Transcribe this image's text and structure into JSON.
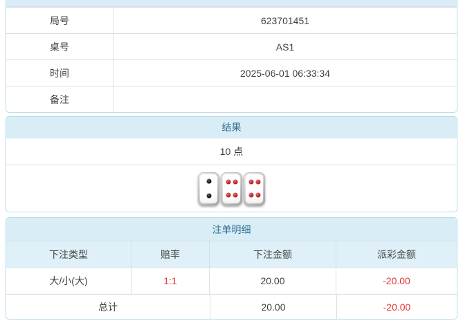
{
  "colors": {
    "accent": "#31708f",
    "heading_bg": "#d9edf7",
    "colheader_bg": "#e0f0f8",
    "panel_border": "#b8dcea",
    "red": "#e33535"
  },
  "info_table": {
    "rows": [
      {
        "label": "局号",
        "value": "623701451"
      },
      {
        "label": "桌号",
        "value": "AS1"
      },
      {
        "label": "时间",
        "value": "2025-06-01 06:33:34"
      },
      {
        "label": "备注",
        "value": ""
      }
    ]
  },
  "result_panel": {
    "title": "结果",
    "points": "10 点",
    "dice": [
      {
        "value": 2,
        "color": "black"
      },
      {
        "value": 4,
        "color": "red"
      },
      {
        "value": 4,
        "color": "red"
      }
    ]
  },
  "bets_panel": {
    "title": "注单明细",
    "columns": [
      "下注类型",
      "赔率",
      "下注金额",
      "派彩金额"
    ],
    "rows": [
      {
        "type": "大/小(大)",
        "odds": "1:1",
        "bet_amount": "20.00",
        "payout": "-20.00"
      }
    ],
    "total": {
      "label": "总计",
      "bet_amount": "20.00",
      "payout": "-20.00"
    }
  }
}
